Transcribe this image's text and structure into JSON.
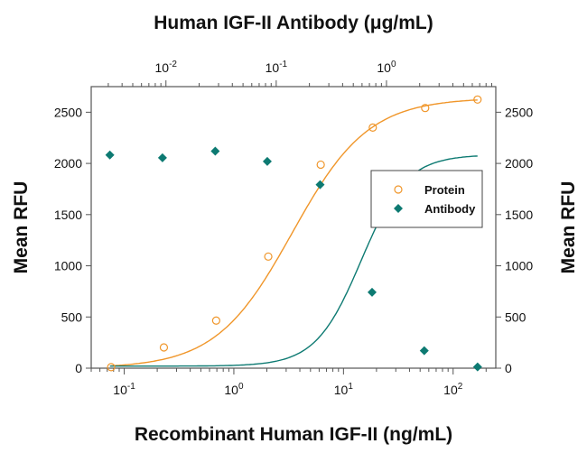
{
  "chart_data": {
    "type": "scatter",
    "title_top": "Human IGF-II Antibody (μg/mL)",
    "xlabel": "Recombinant Human IGF-II (ng/mL)",
    "ylabel_left": "Mean RFU",
    "ylabel_right": "Mean RFU",
    "x_scale": "log",
    "xlim_bottom": [
      0.05,
      245
    ],
    "xlim_top": [
      0.0021,
      9.8
    ],
    "ylim": [
      0,
      2750
    ],
    "y_ticks": [
      0,
      500,
      1000,
      1500,
      2000,
      2500
    ],
    "x_ticks_bottom": [
      {
        "base": "10",
        "exp": "-1",
        "v": 0.1
      },
      {
        "base": "10",
        "exp": "0",
        "v": 1
      },
      {
        "base": "10",
        "exp": "1",
        "v": 10
      },
      {
        "base": "10",
        "exp": "2",
        "v": 100
      }
    ],
    "x_ticks_top": [
      {
        "base": "10",
        "exp": "-2",
        "v": 0.01
      },
      {
        "base": "10",
        "exp": "-1",
        "v": 0.1
      },
      {
        "base": "10",
        "exp": "0",
        "v": 1
      }
    ],
    "legend_position": "center-right",
    "series": [
      {
        "name": "Protein",
        "axis": "bottom",
        "marker": "open-circle",
        "color": "#f0962a",
        "x": [
          0.076,
          0.23,
          0.69,
          2.06,
          6.2,
          18.5,
          55.6,
          167
        ],
        "y": [
          10,
          203,
          465,
          1090,
          1988,
          2350,
          2541,
          2624
        ],
        "fit": {
          "bottom": 0,
          "top": 2640,
          "ec50": 3.4,
          "hill": 1.25
        }
      },
      {
        "name": "Antibody",
        "axis": "top",
        "marker": "filled-diamond",
        "color": "#0d7a72",
        "x": [
          0.0031,
          0.0093,
          0.028,
          0.083,
          0.25,
          0.74,
          2.2,
          6.7
        ],
        "y": [
          2082,
          2055,
          2120,
          2020,
          1793,
          742,
          171,
          12
        ],
        "fit": {
          "bottom": 20,
          "top": 2085,
          "ec50": 0.59,
          "hill": 2.1
        }
      }
    ]
  }
}
